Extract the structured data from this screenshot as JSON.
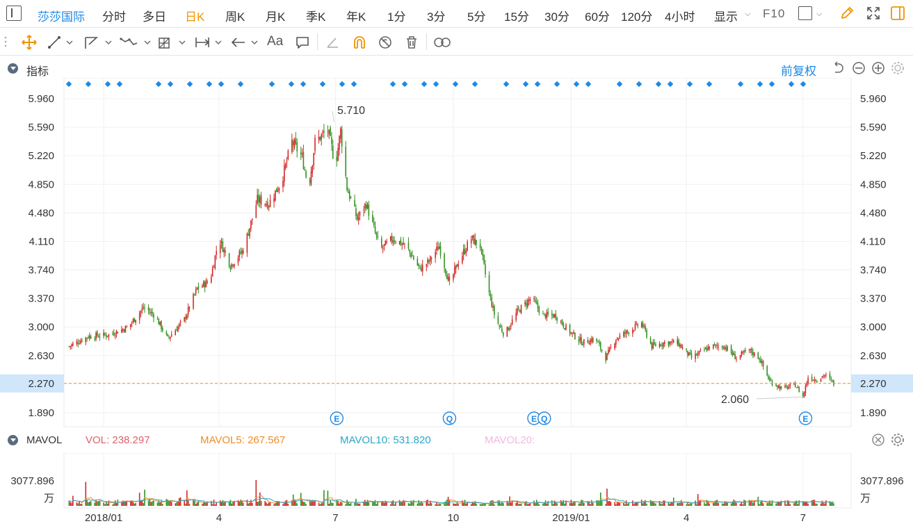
{
  "toolbar": {
    "stock_name": "莎莎国际",
    "periods": [
      "分时",
      "多日",
      "日K",
      "周K",
      "月K",
      "季K",
      "年K",
      "1分",
      "3分",
      "5分",
      "15分",
      "30分",
      "60分",
      "120分",
      "4小时"
    ],
    "active_period": "日K",
    "display_label": "显示",
    "f10_label": "F10"
  },
  "indicator_panel": {
    "title": "指标",
    "adjust_label": "前复权"
  },
  "volume_panel": {
    "title": "MAVOL",
    "vol": "VOL: 238.297",
    "mavol5": "MAVOL5: 267.567",
    "mavol10": "MAVOL10: 531.820",
    "mavol20": "MAVOL20:",
    "axis_value": "3077.896",
    "axis_unit": "万"
  },
  "colors": {
    "up": "#d42222",
    "down": "#2f8f1f",
    "accent_blue": "#1e88e5",
    "accent_orange": "#f29400",
    "mavol5": "#f08c28",
    "mavol10": "#2aa6c8",
    "mavol20": "#f3b8e0"
  },
  "chart_data": {
    "type": "candlestick",
    "y_ticks": [
      "5.960",
      "5.590",
      "5.220",
      "4.850",
      "4.480",
      "4.110",
      "3.740",
      "3.370",
      "3.000",
      "2.630",
      "2.270",
      "1.890"
    ],
    "ylim": [
      1.71,
      6.23
    ],
    "x_labels": [
      "2018/01",
      "4",
      "7",
      "10",
      "2019/01",
      "4",
      "7"
    ],
    "current_price": "2.270",
    "max_label": "5.710",
    "min_label": "2.060",
    "event_markers": [
      "E",
      "Q",
      "E",
      "Q",
      "E"
    ],
    "anchors": [
      [
        "2017-12-05",
        2.75
      ],
      [
        "2017-12-20",
        2.88
      ],
      [
        "2018-01-05",
        2.9
      ],
      [
        "2018-01-20",
        3.0
      ],
      [
        "2018-02-01",
        3.25
      ],
      [
        "2018-02-10",
        3.15
      ],
      [
        "2018-02-20",
        2.85
      ],
      [
        "2018-03-05",
        3.1
      ],
      [
        "2018-03-15",
        3.5
      ],
      [
        "2018-03-25",
        3.6
      ],
      [
        "2018-04-01",
        4.15
      ],
      [
        "2018-04-10",
        3.8
      ],
      [
        "2018-04-20",
        4.0
      ],
      [
        "2018-05-01",
        4.65
      ],
      [
        "2018-05-10",
        4.6
      ],
      [
        "2018-05-20",
        4.9
      ],
      [
        "2018-05-28",
        5.4
      ],
      [
        "2018-06-05",
        5.2
      ],
      [
        "2018-06-10",
        4.8
      ],
      [
        "2018-06-15",
        5.4
      ],
      [
        "2018-06-25",
        5.55
      ],
      [
        "2018-07-01",
        5.1
      ],
      [
        "2018-07-05",
        5.55
      ],
      [
        "2018-07-10",
        4.8
      ],
      [
        "2018-07-18",
        4.4
      ],
      [
        "2018-07-25",
        4.6
      ],
      [
        "2018-08-05",
        4.0
      ],
      [
        "2018-08-15",
        4.15
      ],
      [
        "2018-08-25",
        4.05
      ],
      [
        "2018-09-05",
        3.75
      ],
      [
        "2018-09-12",
        3.85
      ],
      [
        "2018-09-20",
        4.05
      ],
      [
        "2018-09-28",
        3.55
      ],
      [
        "2018-10-05",
        3.85
      ],
      [
        "2018-10-15",
        4.15
      ],
      [
        "2018-10-22",
        4.05
      ],
      [
        "2018-10-28",
        3.5
      ],
      [
        "2018-11-03",
        3.1
      ],
      [
        "2018-11-10",
        2.9
      ],
      [
        "2018-11-20",
        3.2
      ],
      [
        "2018-12-01",
        3.38
      ],
      [
        "2018-12-10",
        3.15
      ],
      [
        "2018-12-20",
        3.15
      ],
      [
        "2018-12-30",
        2.95
      ],
      [
        "2019-01-10",
        2.8
      ],
      [
        "2019-01-20",
        2.85
      ],
      [
        "2019-01-28",
        2.6
      ],
      [
        "2019-02-05",
        2.85
      ],
      [
        "2019-02-15",
        2.95
      ],
      [
        "2019-02-25",
        3.05
      ],
      [
        "2019-03-05",
        2.75
      ],
      [
        "2019-03-15",
        2.8
      ],
      [
        "2019-03-25",
        2.8
      ],
      [
        "2019-04-05",
        2.6
      ],
      [
        "2019-04-20",
        2.75
      ],
      [
        "2019-05-01",
        2.75
      ],
      [
        "2019-05-10",
        2.6
      ],
      [
        "2019-05-20",
        2.7
      ],
      [
        "2019-05-28",
        2.6
      ],
      [
        "2019-06-05",
        2.3
      ],
      [
        "2019-06-15",
        2.2
      ],
      [
        "2019-06-25",
        2.25
      ],
      [
        "2019-07-01",
        2.1
      ],
      [
        "2019-07-05",
        2.35
      ],
      [
        "2019-07-12",
        2.32
      ],
      [
        "2019-07-18",
        2.38
      ],
      [
        "2019-07-25",
        2.27
      ]
    ]
  }
}
